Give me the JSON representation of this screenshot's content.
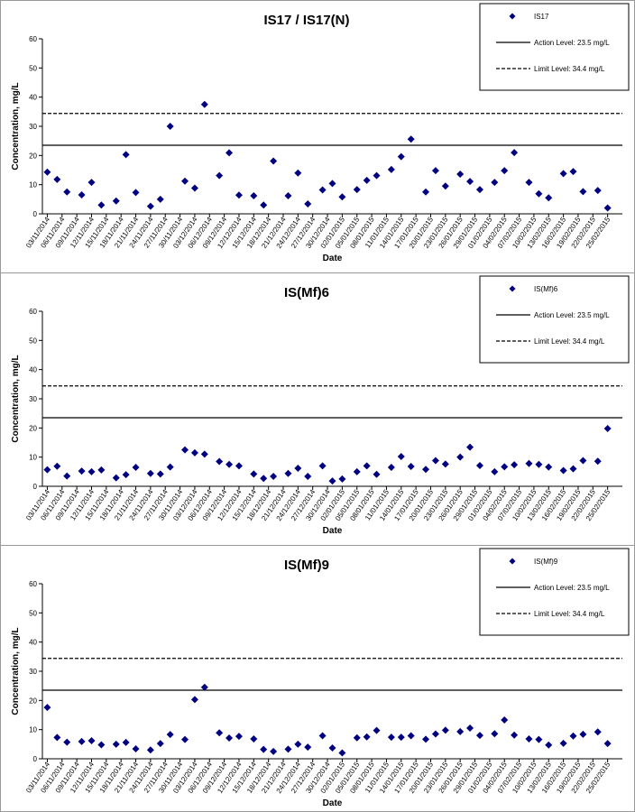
{
  "chart_data": [
    {
      "type": "scatter",
      "title": "IS17 / IS17(N)",
      "xlabel": "Date",
      "ylabel": "Concentration, mg/L",
      "x": [
        "03/11/2014",
        "05/11/2014",
        "07/11/2014",
        "10/11/2014",
        "12/11/2014",
        "14/11/2014",
        "17/11/2014",
        "19/11/2014",
        "21/11/2014",
        "24/11/2014",
        "26/11/2014",
        "28/11/2014",
        "01/12/2014",
        "03/12/2014",
        "05/12/2014",
        "08/12/2014",
        "10/12/2014",
        "12/12/2014",
        "15/12/2014",
        "17/12/2014",
        "19/12/2014",
        "22/12/2014",
        "24/12/2014",
        "26/12/2014",
        "29/12/2014",
        "31/12/2014",
        "02/01/2015",
        "05/01/2015",
        "07/01/2015",
        "09/01/2015",
        "12/01/2015",
        "14/01/2015",
        "16/01/2015",
        "19/01/2015",
        "21/01/2015",
        "23/01/2015",
        "26/01/2015",
        "28/01/2015",
        "30/01/2015",
        "02/02/2015",
        "04/02/2015",
        "06/02/2015",
        "09/02/2015",
        "11/02/2015",
        "13/02/2015",
        "16/02/2015",
        "18/02/2015",
        "20/02/2015",
        "23/02/2015",
        "25/02/2015"
      ],
      "series": [
        {
          "name": "IS17",
          "color": "#000080",
          "values": [
            14.3,
            11.8,
            7.5,
            6.5,
            10.8,
            3,
            4.4,
            20.3,
            7.3,
            2.6,
            5,
            30,
            11.2,
            8.8,
            37.5,
            13.1,
            20.9,
            6.4,
            6.2,
            3,
            18.1,
            6.2,
            14,
            3.4,
            8.2,
            10.4,
            5.8,
            8.3,
            11.5,
            13.1,
            15.2,
            19.6,
            25.6,
            7.5,
            14.8,
            9.5,
            13.6,
            11.1,
            8.3,
            10.8,
            14.8,
            21,
            10.8,
            6.9,
            5.5,
            13.8,
            14.5,
            7.6,
            8,
            2
          ]
        }
      ],
      "lines": [
        {
          "name": "Action Level: 23.5 mg/L",
          "value": 23.5,
          "style": "solid"
        },
        {
          "name": "Limit Level: 34.4 mg/L",
          "value": 34.4,
          "style": "dashed"
        }
      ],
      "xlim": [
        "02/11/2014",
        "28/02/2015"
      ],
      "ylim": [
        0,
        60
      ],
      "yticks": [
        0,
        10,
        20,
        30,
        40,
        50,
        60
      ],
      "xticks": [
        "03/11/2014",
        "06/11/2014",
        "09/11/2014",
        "12/11/2014",
        "15/11/2014",
        "18/11/2014",
        "21/11/2014",
        "24/11/2014",
        "27/11/2014",
        "30/11/2014",
        "03/12/2014",
        "06/12/2014",
        "09/12/2014",
        "12/12/2014",
        "15/12/2014",
        "18/12/2014",
        "21/12/2014",
        "24/12/2014",
        "27/12/2014",
        "30/12/2014",
        "02/01/2015",
        "05/01/2015",
        "08/01/2015",
        "11/01/2015",
        "14/01/2015",
        "17/01/2015",
        "20/01/2015",
        "23/01/2015",
        "26/01/2015",
        "29/01/2015",
        "01/02/2015",
        "04/02/2015",
        "07/02/2015",
        "10/02/2015",
        "13/02/2015",
        "16/02/2015",
        "19/02/2015",
        "22/02/2015",
        "25/02/2015"
      ]
    },
    {
      "type": "scatter",
      "title": "IS(Mf)6",
      "xlabel": "Date",
      "ylabel": "Concentration, mg/L",
      "x": [
        "03/11/2014",
        "05/11/2014",
        "07/11/2014",
        "10/11/2014",
        "12/11/2014",
        "14/11/2014",
        "17/11/2014",
        "19/11/2014",
        "21/11/2014",
        "24/11/2014",
        "26/11/2014",
        "28/11/2014",
        "01/12/2014",
        "03/12/2014",
        "05/12/2014",
        "08/12/2014",
        "10/12/2014",
        "12/12/2014",
        "15/12/2014",
        "17/12/2014",
        "19/12/2014",
        "22/12/2014",
        "24/12/2014",
        "26/12/2014",
        "29/12/2014",
        "31/12/2014",
        "02/01/2015",
        "05/01/2015",
        "07/01/2015",
        "09/01/2015",
        "12/01/2015",
        "14/01/2015",
        "16/01/2015",
        "19/01/2015",
        "21/01/2015",
        "23/01/2015",
        "26/01/2015",
        "28/01/2015",
        "30/01/2015",
        "02/02/2015",
        "04/02/2015",
        "06/02/2015",
        "09/02/2015",
        "11/02/2015",
        "13/02/2015",
        "16/02/2015",
        "18/02/2015",
        "20/02/2015",
        "23/02/2015",
        "25/02/2015"
      ],
      "series": [
        {
          "name": "IS(Mf)6",
          "color": "#000080",
          "values": [
            5.7,
            6.9,
            3.5,
            5.2,
            5,
            5.6,
            2.9,
            4,
            6.5,
            4.4,
            4.2,
            6.6,
            12.5,
            11.5,
            11,
            8.5,
            7.5,
            7,
            4.2,
            2.7,
            3.4,
            4.4,
            6.2,
            3.4,
            7,
            1.8,
            2.5,
            5,
            7,
            4.1,
            6.5,
            10.2,
            6.8,
            5.8,
            8.8,
            7.6,
            10,
            13.4,
            7.1,
            5,
            6.7,
            7.4,
            7.8,
            7.5,
            6.6,
            5.4,
            6,
            8.8,
            8.6,
            19.8
          ]
        }
      ],
      "lines": [
        {
          "name": "Action Level: 23.5 mg/L",
          "value": 23.5,
          "style": "solid"
        },
        {
          "name": "Limit Level: 34.4 mg/L",
          "value": 34.4,
          "style": "dashed"
        }
      ],
      "xlim": [
        "02/11/2014",
        "28/02/2015"
      ],
      "ylim": [
        0,
        60
      ],
      "yticks": [
        0,
        10,
        20,
        30,
        40,
        50,
        60
      ],
      "xticks": [
        "03/11/2014",
        "06/11/2014",
        "09/11/2014",
        "12/11/2014",
        "15/11/2014",
        "18/11/2014",
        "21/11/2014",
        "24/11/2014",
        "27/11/2014",
        "30/11/2014",
        "03/12/2014",
        "06/12/2014",
        "09/12/2014",
        "12/12/2014",
        "15/12/2014",
        "18/12/2014",
        "21/12/2014",
        "24/12/2014",
        "27/12/2014",
        "30/12/2014",
        "02/01/2015",
        "05/01/2015",
        "08/01/2015",
        "11/01/2015",
        "14/01/2015",
        "17/01/2015",
        "20/01/2015",
        "23/01/2015",
        "26/01/2015",
        "29/01/2015",
        "01/02/2015",
        "04/02/2015",
        "07/02/2015",
        "10/02/2015",
        "13/02/2015",
        "16/02/2015",
        "19/02/2015",
        "22/02/2015",
        "25/02/2015"
      ]
    },
    {
      "type": "scatter",
      "title": "IS(Mf)9",
      "xlabel": "Date",
      "ylabel": "Concentration, mg/L",
      "x": [
        "03/11/2014",
        "05/11/2014",
        "07/11/2014",
        "10/11/2014",
        "12/11/2014",
        "14/11/2014",
        "17/11/2014",
        "19/11/2014",
        "21/11/2014",
        "24/11/2014",
        "26/11/2014",
        "28/11/2014",
        "01/12/2014",
        "03/12/2014",
        "05/12/2014",
        "08/12/2014",
        "10/12/2014",
        "12/12/2014",
        "15/12/2014",
        "17/12/2014",
        "19/12/2014",
        "22/12/2014",
        "24/12/2014",
        "26/12/2014",
        "29/12/2014",
        "31/12/2014",
        "02/01/2015",
        "05/01/2015",
        "07/01/2015",
        "09/01/2015",
        "12/01/2015",
        "14/01/2015",
        "16/01/2015",
        "19/01/2015",
        "21/01/2015",
        "23/01/2015",
        "26/01/2015",
        "28/01/2015",
        "30/01/2015",
        "02/02/2015",
        "04/02/2015",
        "06/02/2015",
        "09/02/2015",
        "11/02/2015",
        "13/02/2015",
        "16/02/2015",
        "18/02/2015",
        "20/02/2015",
        "23/02/2015",
        "25/02/2015"
      ],
      "series": [
        {
          "name": "IS(Mf)9",
          "color": "#000080",
          "values": [
            17.6,
            7.3,
            5.7,
            5.9,
            6.2,
            4.8,
            5,
            5.6,
            3.4,
            3,
            5.2,
            8.3,
            6.6,
            20.3,
            24.5,
            8.9,
            7.1,
            7.7,
            6.8,
            3.2,
            2.5,
            3.3,
            5,
            4,
            7.9,
            3.7,
            2,
            7.2,
            7.5,
            9.7,
            7.4,
            7.4,
            7.9,
            6.7,
            8.5,
            9.8,
            9.3,
            10.5,
            8,
            8.6,
            13.3,
            8.1,
            6.8,
            6.6,
            4.7,
            5.3,
            7.8,
            8.4,
            9.2,
            5.2
          ]
        }
      ],
      "lines": [
        {
          "name": "Action Level: 23.5 mg/L",
          "value": 23.5,
          "style": "solid"
        },
        {
          "name": "Limit Level: 34.4 mg/L",
          "value": 34.4,
          "style": "dashed"
        }
      ],
      "xlim": [
        "02/11/2014",
        "28/02/2015"
      ],
      "ylim": [
        0,
        60
      ],
      "yticks": [
        0,
        10,
        20,
        30,
        40,
        50,
        60
      ],
      "xticks": [
        "03/11/2014",
        "06/11/2014",
        "09/11/2014",
        "12/11/2014",
        "15/11/2014",
        "18/11/2014",
        "21/11/2014",
        "24/11/2014",
        "27/11/2014",
        "30/11/2014",
        "03/12/2014",
        "06/12/2014",
        "09/12/2014",
        "12/12/2014",
        "15/12/2014",
        "18/12/2014",
        "21/12/2014",
        "24/12/2014",
        "27/12/2014",
        "30/12/2014",
        "02/01/2015",
        "05/01/2015",
        "08/01/2015",
        "11/01/2015",
        "14/01/2015",
        "17/01/2015",
        "20/01/2015",
        "23/01/2015",
        "26/01/2015",
        "29/01/2015",
        "01/02/2015",
        "04/02/2015",
        "07/02/2015",
        "10/02/2015",
        "13/02/2015",
        "16/02/2015",
        "19/02/2015",
        "22/02/2015",
        "25/02/2015"
      ]
    }
  ]
}
